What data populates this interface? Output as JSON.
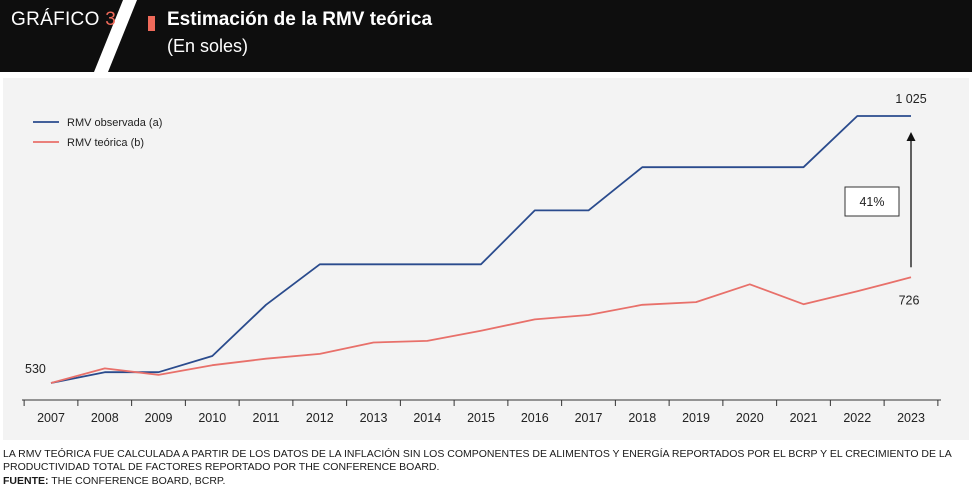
{
  "header": {
    "figure_word": "GRÁFICO",
    "figure_number": "3",
    "title": "Estimación de la RMV teórica",
    "subtitle": "(En soles)"
  },
  "colors": {
    "observed": "#2a4b8d",
    "theoretical": "#e8706a",
    "accent": "#ef6a5a"
  },
  "chart_data": {
    "type": "line",
    "title": "Estimación de la RMV teórica",
    "subtitle": "(En soles)",
    "xlabel": "",
    "ylabel": "",
    "x": [
      "2007",
      "2008",
      "2009",
      "2010",
      "2011",
      "2012",
      "2013",
      "2014",
      "2015",
      "2016",
      "2017",
      "2018",
      "2019",
      "2020",
      "2021",
      "2022",
      "2023"
    ],
    "ylim": [
      530,
      1025
    ],
    "grid": false,
    "legend_position": "top-left",
    "series": [
      {
        "name": "RMV observada (a)",
        "values": [
          530,
          550,
          550,
          580,
          675,
          750,
          750,
          750,
          750,
          850,
          850,
          930,
          930,
          930,
          930,
          1025,
          1025
        ]
      },
      {
        "name": "RMV teórica (b)",
        "values": [
          530,
          557,
          545,
          563,
          575,
          584,
          605,
          608,
          627,
          648,
          656,
          675,
          680,
          713,
          676,
          700,
          726
        ]
      }
    ],
    "annotations": {
      "start_value": "530",
      "end_observed": "1 025",
      "end_theoretical": "726",
      "gap_label": "41%"
    }
  },
  "footer": {
    "note": "LA RMV TEÓRICA FUE CALCULADA A PARTIR DE LOS DATOS DE LA INFLACIÓN SIN LOS COMPONENTES DE ALIMENTOS Y ENERGÍA REPORTADOS POR EL BCRP Y EL CRECIMIENTO DE LA PRODUCTIVIDAD TOTAL DE FACTORES REPORTADO POR THE CONFERENCE BOARD.",
    "source_label": "FUENTE:",
    "source_text": " THE CONFERENCE BOARD, BCRP."
  }
}
